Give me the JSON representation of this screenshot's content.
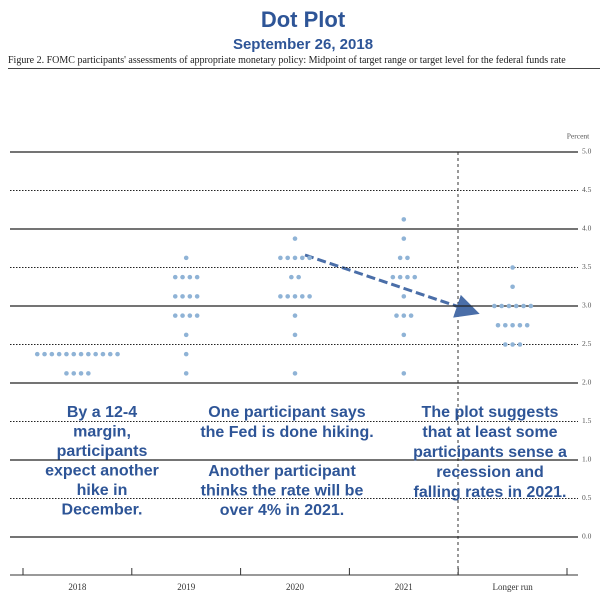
{
  "chart_data": {
    "type": "dot",
    "title": "Dot Plot",
    "subtitle": "September 26, 2018",
    "caption": "Figure 2. FOMC participants' assessments of appropriate monetary policy: Midpoint of target range or target level for the federal funds rate",
    "y_label": "Percent",
    "color": "#8fb3d6",
    "ylim": [
      0,
      5
    ],
    "yticks": [
      {
        "value": 0,
        "label": "0.0"
      },
      0.5,
      {
        "value": 1,
        "label": "1.0"
      },
      1.5,
      {
        "value": 2,
        "label": "2.0"
      },
      2.5,
      {
        "value": 3,
        "label": "3.0"
      },
      3.5,
      {
        "value": 4,
        "label": "4.0"
      },
      4.5,
      {
        "value": 5,
        "label": "5.0"
      }
    ],
    "columns": [
      {
        "label": "2018",
        "levels": [
          2.375,
          2.125
        ],
        "counts": [
          12,
          4
        ]
      },
      {
        "label": "2019",
        "levels": [
          3.625,
          3.375,
          3.125,
          2.875,
          2.625,
          2.375,
          2.125
        ],
        "counts": [
          1,
          4,
          4,
          4,
          1,
          1,
          1
        ]
      },
      {
        "label": "2020",
        "levels": [
          3.875,
          3.625,
          3.375,
          3.125,
          2.875,
          2.625,
          2.125
        ],
        "counts": [
          1,
          5,
          2,
          5,
          1,
          1,
          1
        ]
      },
      {
        "label": "2021",
        "levels": [
          4.125,
          3.875,
          3.625,
          3.375,
          3.125,
          2.875,
          2.625,
          2.125
        ],
        "counts": [
          1,
          1,
          2,
          4,
          1,
          3,
          1,
          1
        ]
      },
      {
        "label": "Longer run",
        "levels": [
          3.5,
          3.25,
          3.0,
          2.75,
          2.5
        ],
        "counts": [
          1,
          1,
          6,
          5,
          3
        ]
      }
    ],
    "annotations": [
      {
        "lines": [
          "By a 12-4",
          "margin,",
          "participants",
          "expect another",
          "hike in",
          "December."
        ]
      },
      {
        "lines": [
          "One participant says",
          "the Fed is done hiking."
        ]
      },
      {
        "lines": [
          "Another participant",
          "thinks the rate will be",
          "over 4% in 2021."
        ]
      },
      {
        "lines": [
          "The plot suggests",
          "that at least some",
          "participants sense a",
          "recession and",
          "falling rates in 2021."
        ]
      }
    ]
  }
}
